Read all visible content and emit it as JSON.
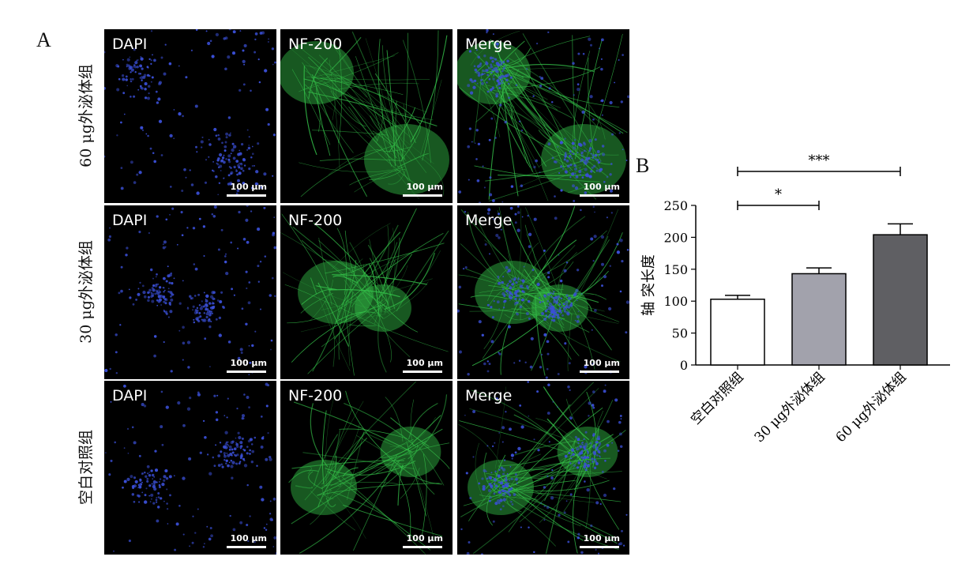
{
  "panel_a_label": "A",
  "panel_b_label": "B",
  "rows": [
    {
      "label": "60 μg外泌体组",
      "dapi": "DAPI",
      "nf": "NF-200",
      "merge": "Merge"
    },
    {
      "label": "30 μg外泌体组",
      "dapi": "DAPI",
      "nf": "NF-200",
      "merge": "Merge"
    },
    {
      "label": "空白对照组",
      "dapi": "DAPI",
      "nf": "NF-200",
      "merge": "Merge"
    }
  ],
  "scale_bar_label": "100 μm",
  "colors": {
    "dapi": "#3a4fd6",
    "nf200": "#35c34a",
    "bar_control": "#ffffff",
    "bar_30": "#a2a2ac",
    "bar_60": "#5f5f63"
  },
  "chart_data": {
    "type": "bar",
    "ylabel": "轴 突长度",
    "categories": [
      "空白对照组",
      "30 μg外泌体组",
      "60 μg外泌体组"
    ],
    "values": [
      103,
      143,
      204
    ],
    "error": [
      6,
      9,
      17
    ],
    "ylim": [
      0,
      250
    ],
    "yticks": [
      0,
      50,
      100,
      150,
      200,
      250
    ],
    "significance": [
      {
        "from": 0,
        "to": 1,
        "label": "*"
      },
      {
        "from": 0,
        "to": 2,
        "label": "***"
      }
    ]
  }
}
